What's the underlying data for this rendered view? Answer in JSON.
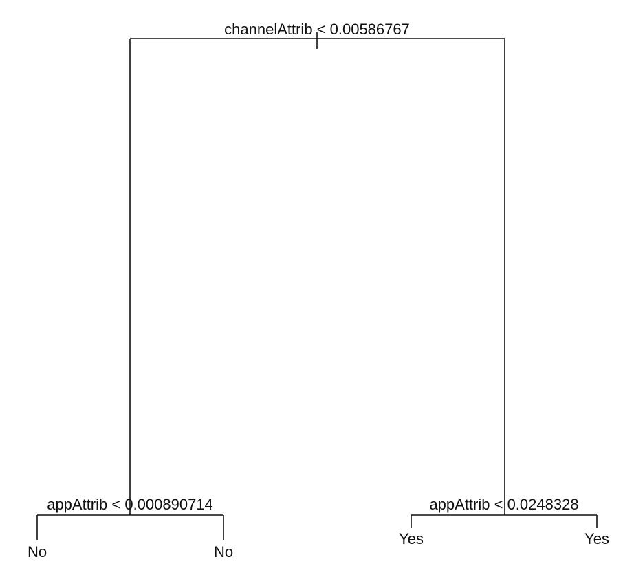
{
  "tree": {
    "root": {
      "split_label": "channelAttrib < 0.00586767",
      "left": {
        "split_label": "appAttrib < 0.000890714",
        "left_leaf": "No",
        "right_leaf": "No"
      },
      "right": {
        "split_label": "appAttrib < 0.0248328",
        "left_leaf": "Yes",
        "right_leaf": "Yes"
      }
    }
  }
}
